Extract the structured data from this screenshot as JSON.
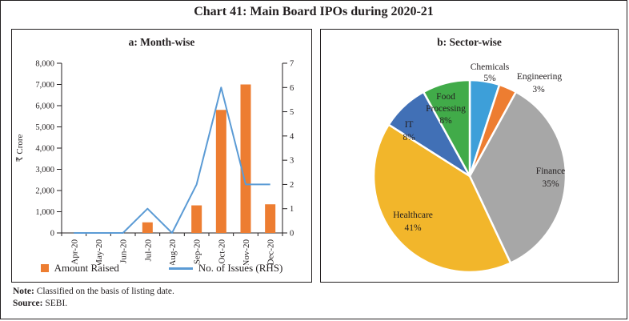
{
  "title": "Chart 41: Main Board IPOs during 2020-21",
  "note": {
    "label": "Note:",
    "text": " Classified on the basis of listing date."
  },
  "source": {
    "label": "Source:",
    "text": " SEBI."
  },
  "colors": {
    "bar": "#ED7D31",
    "line": "#5B9BD5",
    "axis": "#231f20"
  },
  "chart_data": [
    {
      "type": "bar",
      "subtype": "bar-line-combo",
      "title": "a: Month-wise",
      "categories": [
        "Apr-20",
        "May-20",
        "Jun-20",
        "Jul-20",
        "Aug-20",
        "Sep-20",
        "Oct-20",
        "Nov-20",
        "Dec-20"
      ],
      "series": [
        {
          "name": "Amount Raised",
          "type": "bar",
          "axis": "left",
          "color": "#ED7D31",
          "values": [
            0,
            0,
            0,
            500,
            0,
            1300,
            5800,
            7000,
            1350
          ]
        },
        {
          "name": "No. of Issues (RHS)",
          "type": "line",
          "axis": "right",
          "color": "#5B9BD5",
          "values": [
            0,
            0,
            0,
            1,
            0,
            2,
            6,
            2,
            2
          ]
        }
      ],
      "ylabel_left": "₹ Crore",
      "left_axis": {
        "min": 0,
        "max": 8000,
        "step": 1000
      },
      "right_axis": {
        "min": 0,
        "max": 7,
        "step": 1
      },
      "grid": false,
      "legend_position": "bottom"
    },
    {
      "type": "pie",
      "title": "b: Sector-wise",
      "direction": "clockwise",
      "start_angle_deg": 0,
      "slices": [
        {
          "name": "Chemicals",
          "pct": 5,
          "color": "#3D9FD9",
          "label_outside": true
        },
        {
          "name": "Engineering",
          "pct": 3,
          "color": "#ED7D31",
          "label_outside": true
        },
        {
          "name": "Finance",
          "pct": 35,
          "color": "#A7A7A7",
          "label_outside": false
        },
        {
          "name": "Healthcare",
          "pct": 41,
          "color": "#F2B62B",
          "label_outside": false
        },
        {
          "name": "IT",
          "pct": 8,
          "color": "#4170B6",
          "label_outside": false
        },
        {
          "name": "Food Processing",
          "pct": 8,
          "color": "#41AB49",
          "label_outside": false
        }
      ]
    }
  ]
}
